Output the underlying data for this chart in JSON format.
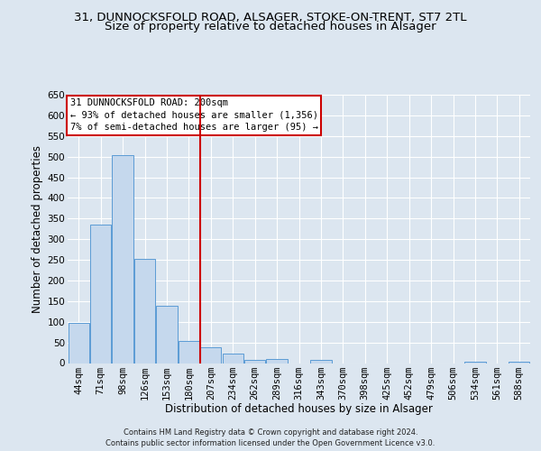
{
  "title_main": "31, DUNNOCKSFOLD ROAD, ALSAGER, STOKE-ON-TRENT, ST7 2TL",
  "title_sub": "Size of property relative to detached houses in Alsager",
  "xlabel": "Distribution of detached houses by size in Alsager",
  "ylabel": "Number of detached properties",
  "categories": [
    "44sqm",
    "71sqm",
    "98sqm",
    "126sqm",
    "153sqm",
    "180sqm",
    "207sqm",
    "234sqm",
    "262sqm",
    "289sqm",
    "316sqm",
    "343sqm",
    "370sqm",
    "398sqm",
    "425sqm",
    "452sqm",
    "479sqm",
    "506sqm",
    "534sqm",
    "561sqm",
    "588sqm"
  ],
  "values": [
    98,
    335,
    503,
    253,
    138,
    53,
    38,
    22,
    8,
    10,
    0,
    8,
    0,
    0,
    0,
    0,
    0,
    0,
    3,
    0,
    3
  ],
  "bar_color": "#c5d8ed",
  "bar_edge_color": "#5b9bd5",
  "vline_color": "#cc0000",
  "vline_index": 5.5,
  "ylim": [
    0,
    650
  ],
  "yticks": [
    0,
    50,
    100,
    150,
    200,
    250,
    300,
    350,
    400,
    450,
    500,
    550,
    600,
    650
  ],
  "annotation_title": "31 DUNNOCKSFOLD ROAD: 200sqm",
  "annotation_line1": "← 93% of detached houses are smaller (1,356)",
  "annotation_line2": "7% of semi-detached houses are larger (95) →",
  "annotation_box_facecolor": "#ffffff",
  "annotation_box_edgecolor": "#cc0000",
  "bg_color": "#dce6f0",
  "plot_bg_color": "#dce6f0",
  "footer_line1": "Contains HM Land Registry data © Crown copyright and database right 2024.",
  "footer_line2": "Contains public sector information licensed under the Open Government Licence v3.0.",
  "title_fontsize": 9.5,
  "subtitle_fontsize": 9.5,
  "xlabel_fontsize": 8.5,
  "ylabel_fontsize": 8.5,
  "tick_fontsize": 7.5,
  "annotation_fontsize": 7.5,
  "footer_fontsize": 6.0
}
